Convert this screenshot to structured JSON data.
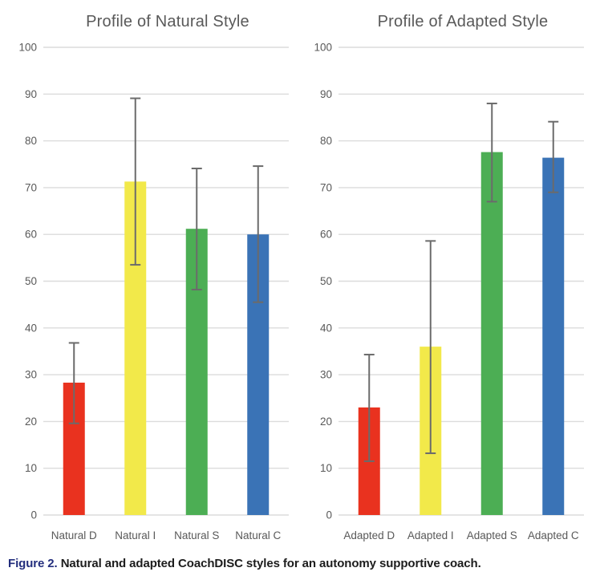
{
  "figure": {
    "caption_label": "Figure 2.",
    "caption_text": " Natural and adapted CoachDISC styles for an autonomy supportive coach."
  },
  "colors": {
    "bar_d_red": "#e9321f",
    "bar_i_yellow": "#f2e94a",
    "bar_s_green": "#4cae54",
    "bar_c_blue": "#3a73b6",
    "error_bar": "#6b6b6b",
    "gridline": "#dcdcdc",
    "axis_text": "#595959",
    "title_text": "#595959",
    "caption_label_color": "#232e7d"
  },
  "chart_data": [
    {
      "type": "bar",
      "title": "Profile of Natural Style",
      "categories": [
        "Natural D",
        "Natural I",
        "Natural S",
        "Natural C"
      ],
      "values": [
        28.3,
        71.3,
        61.2,
        60.0
      ],
      "error_low": [
        19.6,
        53.5,
        48.2,
        45.5
      ],
      "error_high": [
        36.8,
        89.1,
        74.1,
        74.6
      ],
      "bar_colors": [
        "#e9321f",
        "#f2e94a",
        "#4cae54",
        "#3a73b6"
      ],
      "xlabel": "",
      "ylabel": "",
      "ylim": [
        0,
        100
      ],
      "ytick_interval": 10,
      "grid": true,
      "legend": "none"
    },
    {
      "type": "bar",
      "title": "Profile of Adapted Style",
      "categories": [
        "Adapted D",
        "Adapted I",
        "Adapted S",
        "Adapted C"
      ],
      "values": [
        23.0,
        36.0,
        77.6,
        76.4
      ],
      "error_low": [
        11.5,
        13.2,
        67.0,
        69.0
      ],
      "error_high": [
        34.3,
        58.6,
        88.0,
        84.1
      ],
      "bar_colors": [
        "#e9321f",
        "#f2e94a",
        "#4cae54",
        "#3a73b6"
      ],
      "xlabel": "",
      "ylabel": "",
      "ylim": [
        0,
        100
      ],
      "ytick_interval": 10,
      "grid": true,
      "legend": "none"
    }
  ]
}
